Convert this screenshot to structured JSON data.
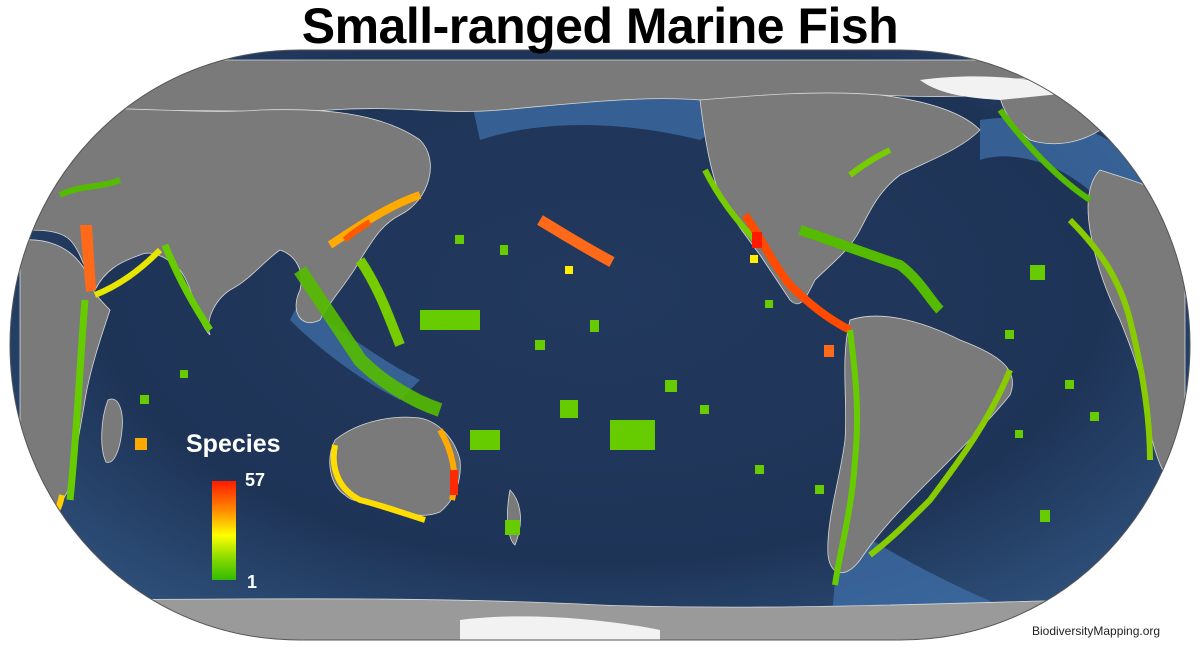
{
  "title": "Small-ranged Marine Fish",
  "legend": {
    "title": "Species",
    "max_label": "57",
    "min_label": "1",
    "colors": [
      "#ff1a00",
      "#ff8c00",
      "#ffff00",
      "#80d800",
      "#33bb00"
    ]
  },
  "credit": "BiodiversityMapping.org",
  "colors": {
    "ocean": "#1f3557",
    "land": "#7a7a7a",
    "ice": "#f2f2f2",
    "border": "#dddddd"
  }
}
